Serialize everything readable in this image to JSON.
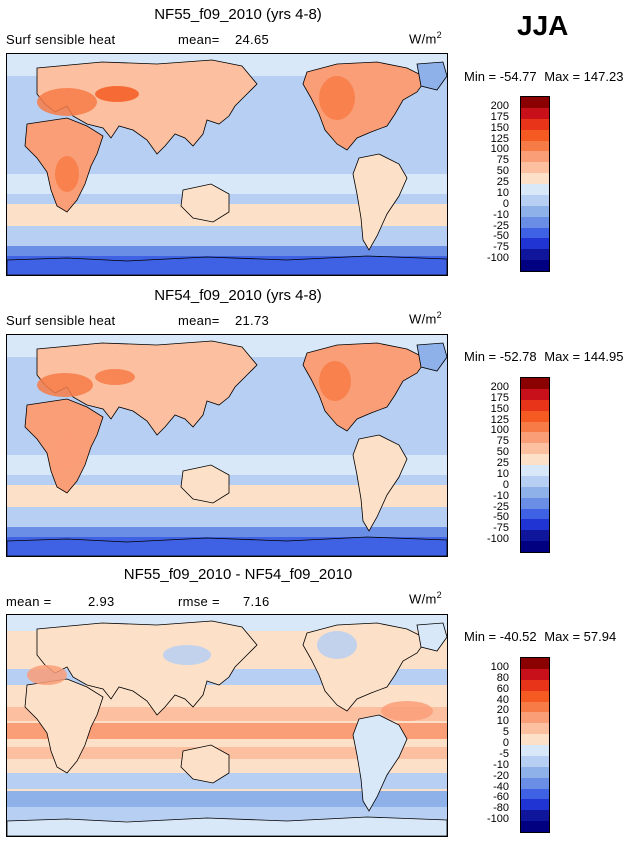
{
  "season": "JJA",
  "units_label": "W/m",
  "units_exp": "2",
  "panels": [
    {
      "title": "NF55_f09_2010 (yrs 4-8)",
      "left_label": "Surf sensible heat",
      "stat_label": "mean=",
      "stat_value": "24.65",
      "min_label": "Min =",
      "min_value": "-54.77",
      "max_label": "Max =",
      "max_value": "147.23"
    },
    {
      "title": "NF54_f09_2010 (yrs 4-8)",
      "left_label": "Surf sensible heat",
      "stat_label": "mean=",
      "stat_value": "21.73",
      "min_label": "Min =",
      "min_value": "-52.78",
      "max_label": "Max =",
      "max_value": "144.95"
    },
    {
      "title": "NF55_f09_2010 - NF54_f09_2010",
      "left_label": "mean =",
      "left_value": "2.93",
      "stat_label": "rmse =",
      "stat_value": "7.16",
      "min_label": "Min =",
      "min_value": "-40.52",
      "max_label": "Max =",
      "max_value": "57.94"
    }
  ],
  "chart_data": [
    {
      "type": "heatmap",
      "title": "NF55_f09_2010 (yrs 4-8)",
      "variable": "Surf sensible heat",
      "mean": 24.65,
      "min": -54.77,
      "max": 147.23,
      "units": "W/m2",
      "legend_levels": [
        "200",
        "175",
        "150",
        "125",
        "100",
        "75",
        "50",
        "25",
        "10",
        "0",
        "-10",
        "-25",
        "-50",
        "-75",
        "-100"
      ],
      "legend_colors": [
        "#8b0000",
        "#c8101a",
        "#e83418",
        "#f45a22",
        "#f77b46",
        "#fa9e78",
        "#fcbf9f",
        "#fde0c8",
        "#d8e8f8",
        "#b7cff2",
        "#8fb1ea",
        "#6a8ee6",
        "#3f62e4",
        "#2034d4",
        "#10169c",
        "#000080"
      ]
    },
    {
      "type": "heatmap",
      "title": "NF54_f09_2010 (yrs 4-8)",
      "variable": "Surf sensible heat",
      "mean": 21.73,
      "min": -52.78,
      "max": 144.95,
      "units": "W/m2",
      "legend_levels": [
        "200",
        "175",
        "150",
        "125",
        "100",
        "75",
        "50",
        "25",
        "10",
        "0",
        "-10",
        "-25",
        "-50",
        "-75",
        "-100"
      ],
      "legend_colors": [
        "#8b0000",
        "#c8101a",
        "#e83418",
        "#f45a22",
        "#f77b46",
        "#fa9e78",
        "#fcbf9f",
        "#fde0c8",
        "#d8e8f8",
        "#b7cff2",
        "#8fb1ea",
        "#6a8ee6",
        "#3f62e4",
        "#2034d4",
        "#10169c",
        "#000080"
      ]
    },
    {
      "type": "heatmap",
      "title": "NF55_f09_2010 - NF54_f09_2010",
      "mean": 2.93,
      "rmse": 7.16,
      "min": -40.52,
      "max": 57.94,
      "units": "W/m2",
      "legend_levels": [
        "100",
        "80",
        "60",
        "40",
        "20",
        "10",
        "5",
        "0",
        "-5",
        "-10",
        "-20",
        "-40",
        "-60",
        "-80",
        "-100"
      ],
      "legend_colors": [
        "#8b0000",
        "#c8101a",
        "#e83418",
        "#f45a22",
        "#f77b46",
        "#fa9e78",
        "#fcbf9f",
        "#fde0c8",
        "#d8e8f8",
        "#b7cff2",
        "#8fb1ea",
        "#6a8ee6",
        "#3f62e4",
        "#2034d4",
        "#10169c",
        "#000080"
      ]
    }
  ]
}
